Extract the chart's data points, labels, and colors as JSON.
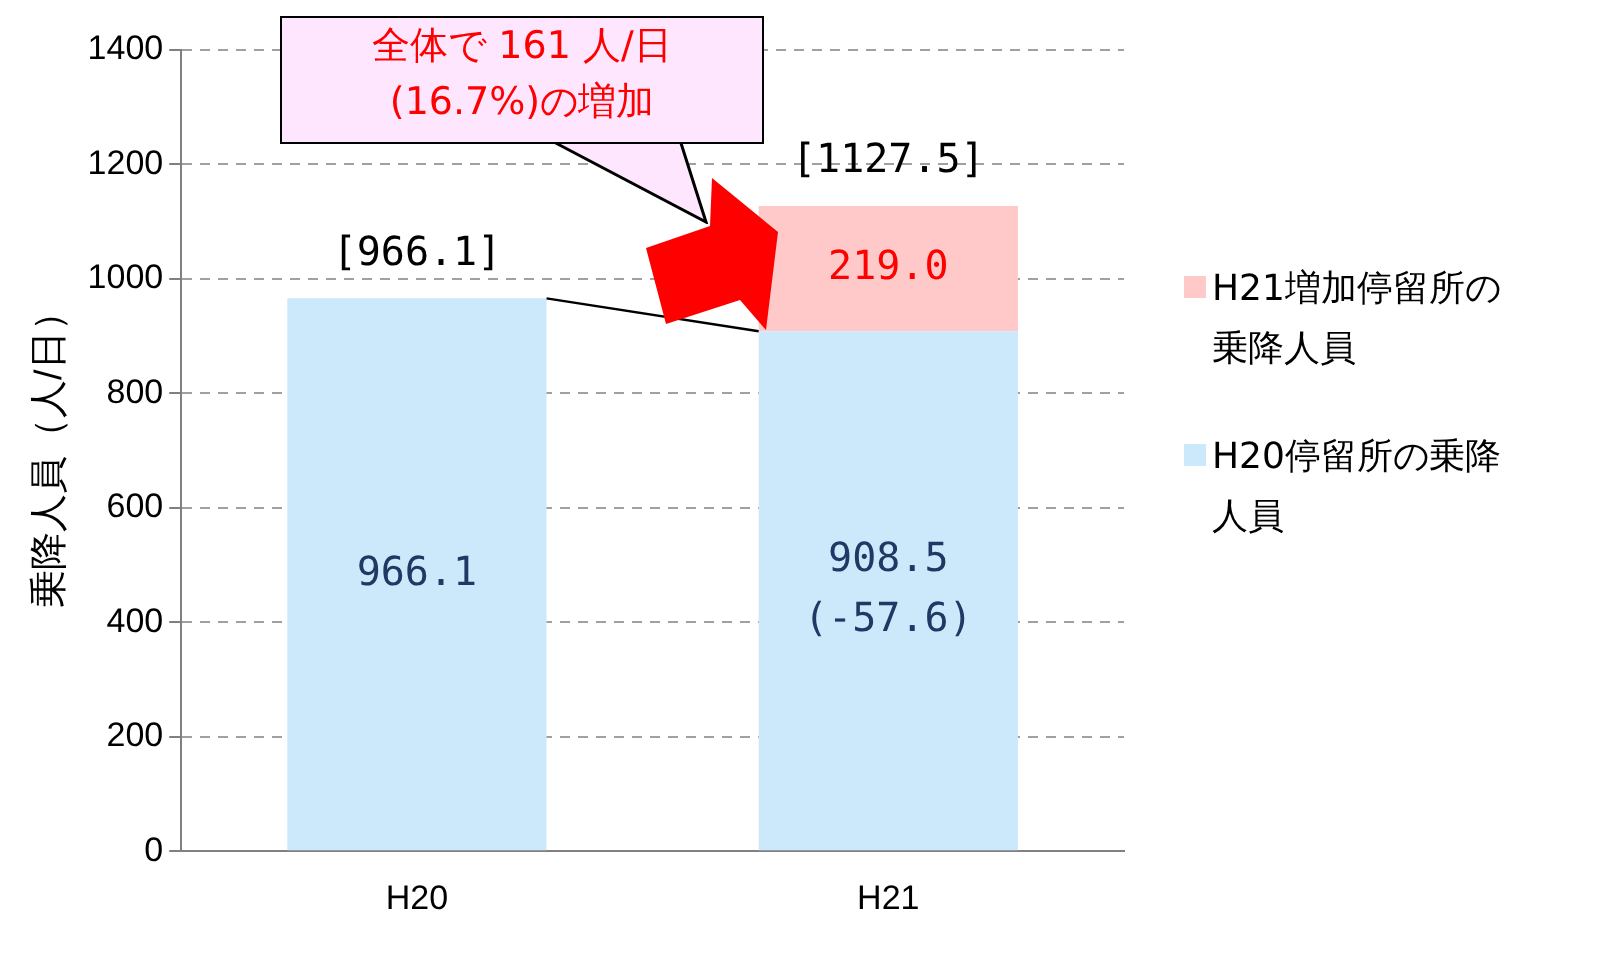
{
  "chart_data": {
    "type": "bar",
    "stacked": true,
    "categories": [
      "H20",
      "H21"
    ],
    "ylabel": "乗降人員（人/日）",
    "ylim": [
      0,
      1400
    ],
    "yticks": [
      0,
      200,
      400,
      600,
      800,
      1000,
      1200,
      1400
    ],
    "grid": "y",
    "legend": "right",
    "series": [
      {
        "name": "H20停留所の乗降人員",
        "color": "#cce9fb",
        "values": [
          966.1,
          908.5
        ],
        "value_labels": [
          "966.1",
          "908.5\n(-57.6)"
        ]
      },
      {
        "name": "H21増加停留所の乗降人員",
        "color": "#ffc9c9",
        "values": [
          null,
          219.0
        ],
        "value_labels": [
          null,
          "219.0"
        ]
      }
    ],
    "totals": [
      "[966.1]",
      "[1127.5]"
    ],
    "annotations": [
      "全体で 161 人/日\n(16.7%)の増加"
    ]
  }
}
